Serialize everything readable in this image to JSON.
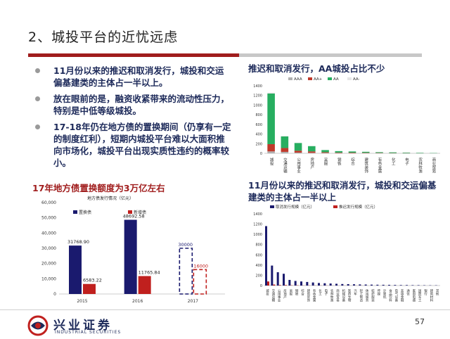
{
  "slide": {
    "title": "2、城投平台的近忧远虑",
    "page_number": "57",
    "accent_color": "#a01d1d",
    "text_color": "#1d2a5a"
  },
  "bullets": [
    "11月份以来的推迟和取消发行，城投和交运偏基建类的主体占一半以上。",
    "放在眼前的是，融资收紧带来的流动性压力，特别是中低等级城投。",
    "17-18年仍在地方债的置换期间（仍享有一定的制度红利），短期内城投平台难以大面积推向市场化，城投平台出现实质性违约的概率较小。"
  ],
  "logo": {
    "name_cn": "兴业证券",
    "name_en": "INDUSTRIAL SECURITIES",
    "icon": "company-seal-icon"
  },
  "charts": {
    "top_right": {
      "heading": "推迟和取消发行，AA城投占比不少"
    },
    "bottom_left": {
      "heading": "17年地方债置换额度为3万亿左右"
    },
    "bottom_right": {
      "heading": "11月份以来的推迟和取消发行，城投和交运偏基建类的主体占一半以上"
    }
  },
  "chart_data": [
    {
      "id": "top_right",
      "type": "bar",
      "stacked": true,
      "ylim": [
        0,
        1400
      ],
      "yticks": [
        0,
        200,
        400,
        600,
        800,
        1000,
        1200,
        1400
      ],
      "legend_position": "top",
      "categories": [
        "城投",
        "交通运输",
        "公用事业",
        "房地产",
        "采掘",
        "钢铁",
        "综合",
        "建筑装饰",
        "有色金属",
        "化工",
        "电子",
        "农林牧渔",
        "商业贸易"
      ],
      "series": [
        {
          "name": "AAA",
          "color": "#b0b0b0",
          "values": [
            40,
            30,
            15,
            10,
            8,
            6,
            4,
            4,
            3,
            2,
            2,
            1,
            1
          ]
        },
        {
          "name": "AA+",
          "color": "#c0392b",
          "values": [
            150,
            80,
            40,
            30,
            15,
            10,
            10,
            8,
            6,
            4,
            3,
            2,
            1
          ]
        },
        {
          "name": "AA",
          "color": "#27ae60",
          "values": [
            1050,
            240,
            160,
            110,
            45,
            30,
            25,
            20,
            15,
            14,
            10,
            8,
            5
          ]
        },
        {
          "name": "AA-",
          "color": "#e6e6e6",
          "values": [
            20,
            10,
            5,
            5,
            2,
            1,
            1,
            1,
            1,
            0,
            0,
            0,
            0
          ]
        }
      ]
    },
    {
      "id": "bottom_left",
      "type": "bar",
      "title": "地方债发行情况（亿元）",
      "ylim": [
        0,
        60000
      ],
      "yticks": [
        0,
        10000,
        20000,
        30000,
        40000,
        50000,
        60000
      ],
      "legend_position": "top",
      "categories": [
        "2015",
        "2016",
        "2017"
      ],
      "series": [
        {
          "name": "置换债",
          "color": "#1a1a6e",
          "values": [
            31768.9,
            48692.58,
            30000
          ],
          "labels": [
            "31768.90",
            "48692.58",
            "30000"
          ]
        },
        {
          "name": "新增债",
          "color": "#c0201e",
          "values": [
            6583.22,
            11765.84,
            16000
          ],
          "labels": [
            "6583.22",
            "11765.84",
            "16000"
          ]
        }
      ],
      "note": "2017 bars drawn as dashed outlines"
    },
    {
      "id": "bottom_right",
      "type": "bar",
      "ylim": [
        0,
        1400
      ],
      "yticks": [
        0,
        200,
        400,
        600,
        800,
        1000,
        1200,
        1400
      ],
      "legend_position": "top",
      "categories": [
        "城投",
        "交通运输",
        "公用事业",
        "房地产",
        "采掘",
        "钢铁",
        "综合",
        "建筑装饰",
        "有色金属",
        "化工",
        "电子",
        "农林牧渔",
        "商业贸易",
        "机械设备",
        "医药生物",
        "汽车",
        "轻工制造",
        "休闲服务",
        "纺织服装",
        "传媒",
        "计算机",
        "食品饮料",
        "电气设备",
        "非银金融",
        "通信",
        "家用电器",
        "国防军工",
        "银行",
        "建筑材料",
        "其他"
      ],
      "series": [
        {
          "name": "取消发行规模（亿元）",
          "color": "#1a1a6e",
          "values": [
            1160,
            390,
            260,
            230,
            110,
            90,
            80,
            70,
            60,
            50,
            45,
            40,
            35,
            30,
            28,
            25,
            22,
            20,
            18,
            16,
            15,
            14,
            12,
            10,
            10,
            8,
            8,
            6,
            5,
            5
          ]
        },
        {
          "name": "推迟发行规模（亿元）",
          "color": "#c0201e",
          "values": [
            80,
            20,
            10,
            10,
            5,
            5,
            3,
            3,
            2,
            2,
            2,
            1,
            1,
            1,
            1,
            1,
            1,
            0,
            0,
            0,
            0,
            0,
            0,
            0,
            0,
            0,
            0,
            0,
            0,
            0
          ]
        }
      ]
    }
  ]
}
